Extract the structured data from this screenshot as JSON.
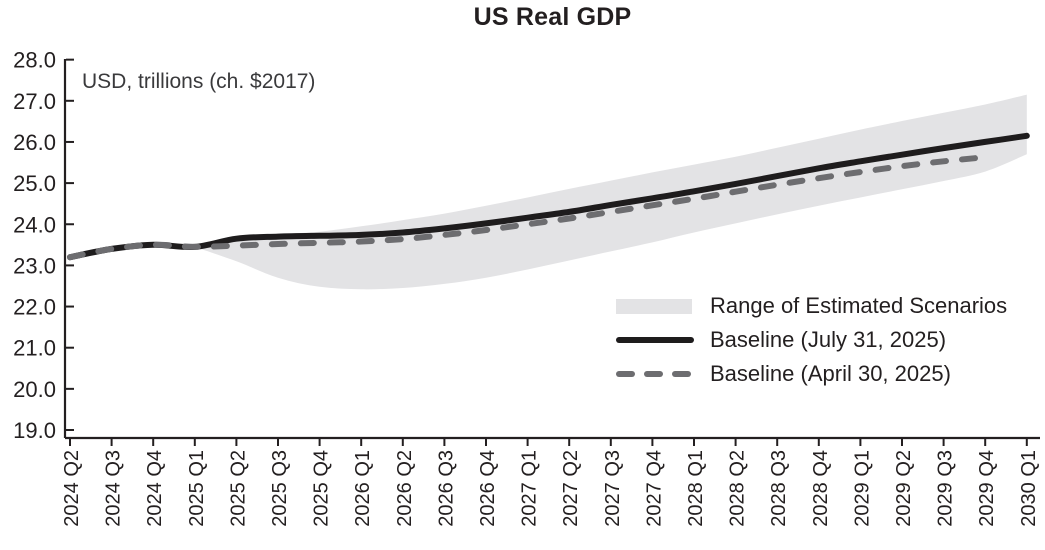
{
  "chart_data": {
    "type": "line",
    "title": "US Real GDP",
    "unit_label": "USD, trillions (ch. $2017)",
    "grid": false,
    "legend_position": "lower-right",
    "ylim": [
      19.0,
      28.0
    ],
    "ytick_step": 1.0,
    "x_label_rotation": 90,
    "categories": [
      "2024 Q2",
      "2024 Q3",
      "2024 Q4",
      "2025 Q1",
      "2025 Q2",
      "2025 Q3",
      "2025 Q4",
      "2026 Q1",
      "2026 Q2",
      "2026 Q3",
      "2026 Q4",
      "2027 Q1",
      "2027 Q2",
      "2027 Q3",
      "2027 Q4",
      "2028 Q1",
      "2028 Q2",
      "2028 Q3",
      "2028 Q4",
      "2029 Q1",
      "2029 Q2",
      "2029 Q3",
      "2029 Q4",
      "2030 Q1"
    ],
    "series": [
      {
        "name": "Range of Estimated Scenarios",
        "type": "band",
        "upper": [
          null,
          null,
          null,
          23.45,
          23.7,
          23.76,
          23.82,
          23.95,
          24.1,
          24.26,
          24.45,
          24.65,
          24.86,
          25.06,
          25.26,
          25.45,
          25.64,
          25.86,
          26.08,
          26.3,
          26.51,
          26.71,
          26.91,
          27.15
        ],
        "lower": [
          null,
          null,
          null,
          23.45,
          23.1,
          22.7,
          22.48,
          22.42,
          22.45,
          22.55,
          22.7,
          22.9,
          23.12,
          23.34,
          23.56,
          23.8,
          24.02,
          24.24,
          24.45,
          24.65,
          24.85,
          25.05,
          25.28,
          25.7
        ]
      },
      {
        "name": "Baseline (July 31, 2025)",
        "type": "line",
        "style": "solid",
        "values": [
          23.2,
          23.4,
          23.5,
          23.45,
          23.65,
          23.7,
          23.72,
          23.74,
          23.8,
          23.9,
          24.02,
          24.16,
          24.3,
          24.47,
          24.63,
          24.8,
          24.98,
          25.17,
          25.36,
          25.53,
          25.69,
          25.85,
          26.0,
          26.15
        ]
      },
      {
        "name": "Baseline (April 30, 2025)",
        "type": "line",
        "style": "dashed",
        "values": [
          23.2,
          23.4,
          23.5,
          23.45,
          23.48,
          23.52,
          23.55,
          23.58,
          23.64,
          23.74,
          23.86,
          24.0,
          24.14,
          24.3,
          24.46,
          24.62,
          24.79,
          24.96,
          25.12,
          25.27,
          25.41,
          25.53,
          25.63,
          null
        ]
      }
    ],
    "legend": [
      {
        "label": "Range of Estimated Scenarios",
        "swatch": "band"
      },
      {
        "label": "Baseline (July 31, 2025)",
        "swatch": "solid-line"
      },
      {
        "label": "Baseline (April 30, 2025)",
        "swatch": "dashed-line"
      }
    ],
    "colors": {
      "band": "#e3e3e5",
      "baseline_july": "#1e1c1d",
      "baseline_april": "#6d6d70",
      "axis": "#231f20",
      "text": "#231f20"
    }
  }
}
